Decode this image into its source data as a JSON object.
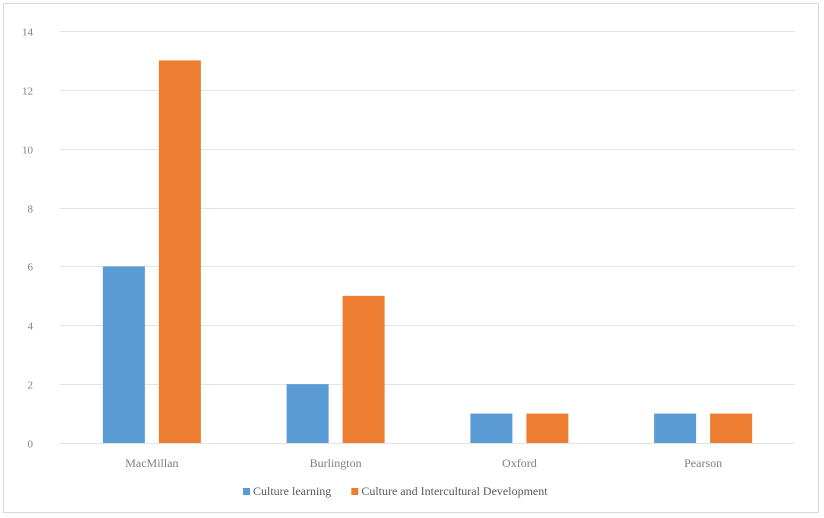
{
  "chart_data": {
    "type": "bar",
    "categories": [
      "MacMillan",
      "Burlington",
      "Oxford",
      "Pearson"
    ],
    "series": [
      {
        "name": "Culture learning",
        "values": [
          6,
          2,
          1,
          1
        ],
        "color": "#5b9bd5"
      },
      {
        "name": "Culture and Intercultural Development",
        "values": [
          13,
          5,
          1,
          1
        ],
        "color": "#ed7d31"
      }
    ],
    "ylim": [
      0,
      14
    ],
    "yticks": [
      0,
      2,
      4,
      6,
      8,
      10,
      12,
      14
    ],
    "grid": true,
    "legend_position": "bottom",
    "title": "",
    "xlabel": "",
    "ylabel": ""
  }
}
